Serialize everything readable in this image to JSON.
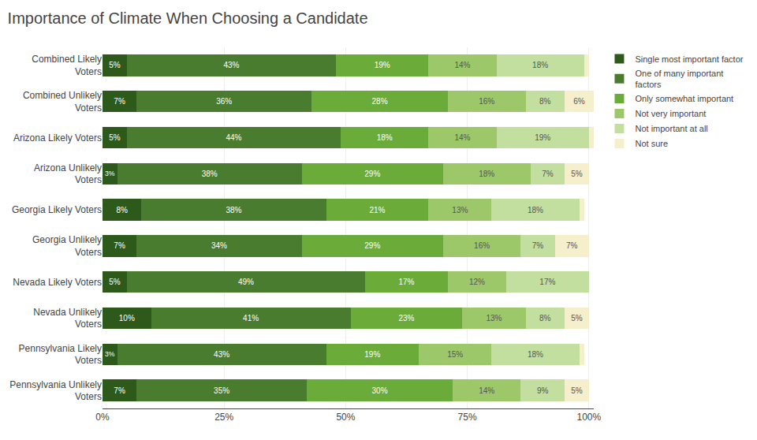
{
  "chart_data": {
    "type": "bar",
    "orientation": "horizontal",
    "stacked": true,
    "title": "Importance of Climate When Choosing a Candidate",
    "categories": [
      "Combined Likely\nVoters",
      "Combined Unlikely\nVoters",
      "Arizona Likely Voters",
      "Arizona Unlikely\nVoters",
      "Georgia Likely Voters",
      "Georgia Unlikely\nVoters",
      "Nevada Likely Voters",
      "Nevada Unlikely\nVoters",
      "Pennsylvania Likely\nVoters",
      "Pennsylvania Unlikely\nVoters"
    ],
    "series": [
      {
        "name": "Single most important factor",
        "color": "#2d5a1b",
        "values": [
          5,
          7,
          5,
          3,
          8,
          7,
          5,
          10,
          3,
          7
        ],
        "value_labels": [
          "5%",
          "7%",
          "5%",
          "3%",
          "8%",
          "7%",
          "5%",
          "10%",
          "3%",
          "7%"
        ]
      },
      {
        "name": "One of many important\nfactors",
        "color": "#4a7c2f",
        "values": [
          43,
          36,
          44,
          38,
          38,
          34,
          49,
          41,
          43,
          35
        ],
        "value_labels": [
          "43%",
          "36%",
          "44%",
          "38%",
          "38%",
          "34%",
          "49%",
          "41%",
          "43%",
          "35%"
        ]
      },
      {
        "name": "Only somewhat important",
        "color": "#6aab3a",
        "values": [
          19,
          28,
          18,
          29,
          21,
          29,
          17,
          23,
          19,
          30
        ],
        "value_labels": [
          "19%",
          "28%",
          "18%",
          "29%",
          "21%",
          "29%",
          "17%",
          "23%",
          "19%",
          "30%"
        ]
      },
      {
        "name": "Not very important",
        "color": "#9dc86a",
        "values": [
          14,
          16,
          14,
          18,
          13,
          16,
          12,
          13,
          15,
          14
        ],
        "value_labels": [
          "14%",
          "16%",
          "14%",
          "18%",
          "13%",
          "16%",
          "12%",
          "13%",
          "15%",
          "14%"
        ]
      },
      {
        "name": "Not important at all",
        "color": "#c2dfa0",
        "values": [
          18,
          8,
          19,
          7,
          18,
          7,
          17,
          8,
          18,
          9
        ],
        "value_labels": [
          "18%",
          "8%",
          "19%",
          "7%",
          "18%",
          "7%",
          "17%",
          "8%",
          "18%",
          "9%"
        ]
      },
      {
        "name": "Not sure",
        "color": "#f5efcc",
        "values": [
          1,
          6,
          1,
          5,
          1,
          7,
          0,
          5,
          1,
          5
        ],
        "value_labels": [
          null,
          "6%",
          null,
          "5%",
          null,
          "7%",
          null,
          "5%",
          null,
          "5%"
        ]
      }
    ],
    "xlim": [
      0,
      101
    ],
    "xticks": [
      {
        "value": 0,
        "label": "0%"
      },
      {
        "value": 25,
        "label": "25%"
      },
      {
        "value": 50,
        "label": "50%"
      },
      {
        "value": 75,
        "label": "75%"
      },
      {
        "value": 100,
        "label": "100%"
      }
    ],
    "grid": true,
    "legend": "upper right",
    "data_labels": true
  }
}
